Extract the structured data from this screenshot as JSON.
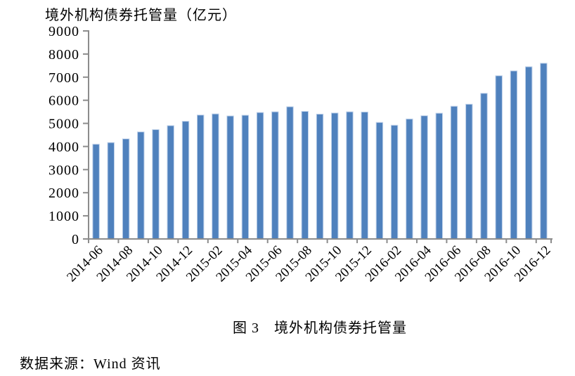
{
  "page": {
    "caption": "图 3　境外机构债券托管量",
    "source": "数据来源：Wind 资讯"
  },
  "chart_data": {
    "type": "bar",
    "title": "境外机构债券托管量（亿元）",
    "categories": [
      "2014-06",
      "2014-07",
      "2014-08",
      "2014-09",
      "2014-10",
      "2014-11",
      "2014-12",
      "2015-01",
      "2015-02",
      "2015-03",
      "2015-04",
      "2015-05",
      "2015-06",
      "2015-07",
      "2015-08",
      "2015-09",
      "2015-10",
      "2015-11",
      "2015-12",
      "2016-01",
      "2016-02",
      "2016-03",
      "2016-04",
      "2016-05",
      "2016-06",
      "2016-07",
      "2016-08",
      "2016-09",
      "2016-10",
      "2016-11",
      "2016-12"
    ],
    "values": [
      4100,
      4170,
      4330,
      4630,
      4730,
      4900,
      5090,
      5360,
      5410,
      5320,
      5350,
      5470,
      5500,
      5720,
      5520,
      5400,
      5450,
      5500,
      5490,
      5040,
      4920,
      5190,
      5330,
      5440,
      5740,
      5830,
      6300,
      7060,
      7270,
      7450,
      7600
    ],
    "xlabel": "",
    "ylabel": "",
    "ylim": [
      0,
      9000
    ],
    "ytick_interval": 1000,
    "xtick_label_interval": 2,
    "grid": false,
    "legend": "none",
    "bar_color": "#4F81BD",
    "bar_edge_color": "#BDD0E9",
    "axis_color": "#8C8C8C",
    "text_color": "#000000"
  }
}
